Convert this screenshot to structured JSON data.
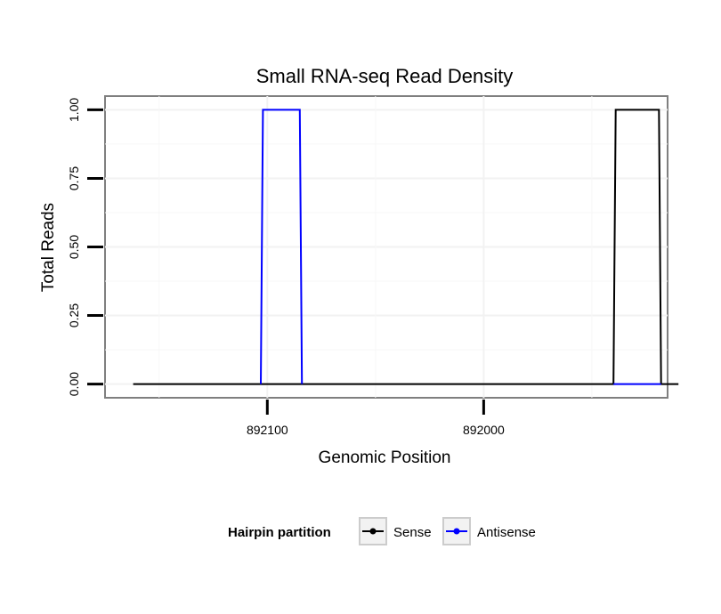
{
  "chart_data": {
    "type": "line",
    "title": "Small RNA-seq Read Density",
    "xlabel": "Genomic Position",
    "ylabel": "Total Reads",
    "x_reversed": true,
    "xlim": [
      892175,
      891915
    ],
    "ylim": [
      -0.05,
      1.05
    ],
    "x_ticks": [
      892100,
      892000
    ],
    "x_tick_labels": [
      "892100",
      "892000"
    ],
    "y_ticks": [
      0,
      0.25,
      0.5,
      0.75,
      1.0
    ],
    "y_tick_labels": [
      "0.00",
      "0.25",
      "0.50",
      "0.75",
      "1.00"
    ],
    "grid": true,
    "legend": {
      "title": "Hairpin partition",
      "position": "bottom"
    },
    "series": [
      {
        "name": "Sense",
        "color": "#000000",
        "points": [
          [
            892162,
            0
          ],
          [
            891940,
            0
          ],
          [
            891939,
            1.0
          ],
          [
            891919,
            1.0
          ],
          [
            891918,
            0
          ],
          [
            891910,
            0
          ]
        ]
      },
      {
        "name": "Antisense",
        "color": "#0000ff",
        "points": [
          [
            891940,
            0
          ],
          [
            891918,
            0
          ]
        ]
      },
      {
        "name": "Antisense",
        "color": "#0000ff",
        "points": [
          [
            892103,
            0
          ],
          [
            892102,
            1.0
          ],
          [
            892085,
            1.0
          ],
          [
            892084,
            0
          ]
        ]
      }
    ]
  }
}
